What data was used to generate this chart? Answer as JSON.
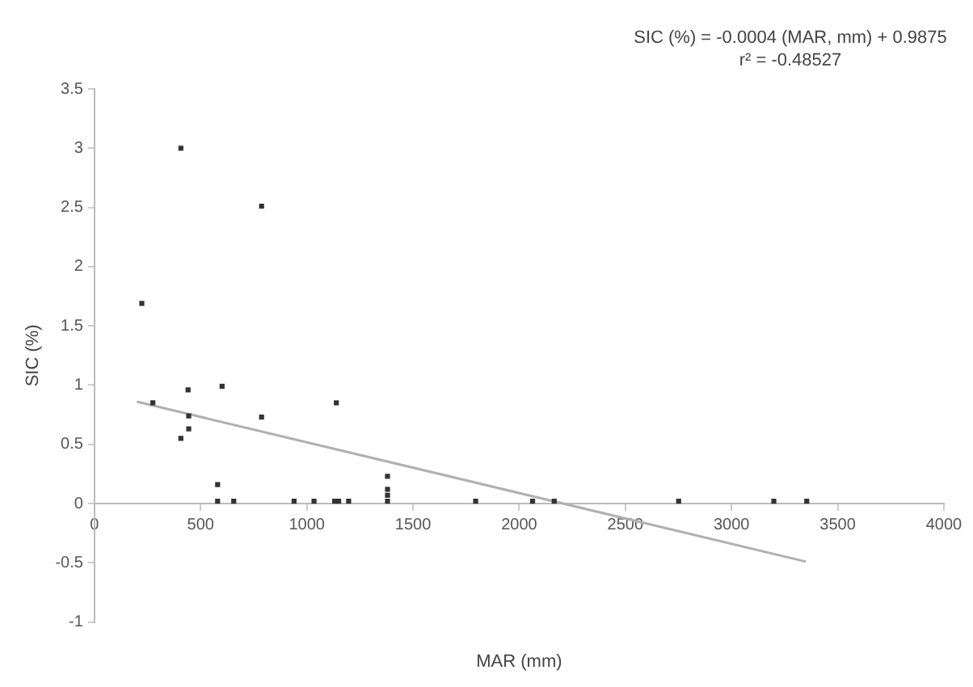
{
  "chart_data": {
    "type": "scatter",
    "xlabel": "MAR (mm)",
    "ylabel": "SIC (%)",
    "annotations": [
      "SIC (%) = -0.0004 (MAR, mm) + 0.9875",
      "r² = -0.48527"
    ],
    "xlim": [
      0,
      4000
    ],
    "xticks": [
      0,
      500,
      1000,
      1500,
      2000,
      2500,
      3000,
      3500,
      4000
    ],
    "ylim": [
      -1,
      3.5
    ],
    "yticks": [
      -1,
      -0.5,
      0,
      0.5,
      1,
      1.5,
      2,
      2.5,
      3,
      3.5
    ],
    "grid": false,
    "legend": false,
    "marker": "square",
    "series": [
      {
        "color": "#333333",
        "x": [
          407,
          787,
          223,
          275,
          441,
          601,
          787,
          1139,
          444,
          444,
          407,
          580,
          580,
          656,
          940,
          1034,
          1131,
          1150,
          1197,
          1380,
          1380,
          1380,
          1380,
          1795,
          2063,
          2165,
          2751,
          3199,
          3354
        ],
        "values": [
          3.0,
          2.51,
          1.69,
          0.85,
          0.96,
          0.99,
          0.73,
          0.85,
          0.74,
          0.63,
          0.55,
          0.16,
          0.02,
          0.02,
          0.02,
          0.02,
          0.02,
          0.02,
          0.02,
          0.23,
          0.12,
          0.07,
          0.02,
          0.02,
          0.02,
          0.02,
          0.02,
          0.02,
          0.02
        ]
      },
      {
        "type": "line",
        "color": "#b0b0b0",
        "marker": "none",
        "x": [
          200,
          3350
        ],
        "values": [
          0.86,
          -0.49
        ]
      }
    ]
  }
}
